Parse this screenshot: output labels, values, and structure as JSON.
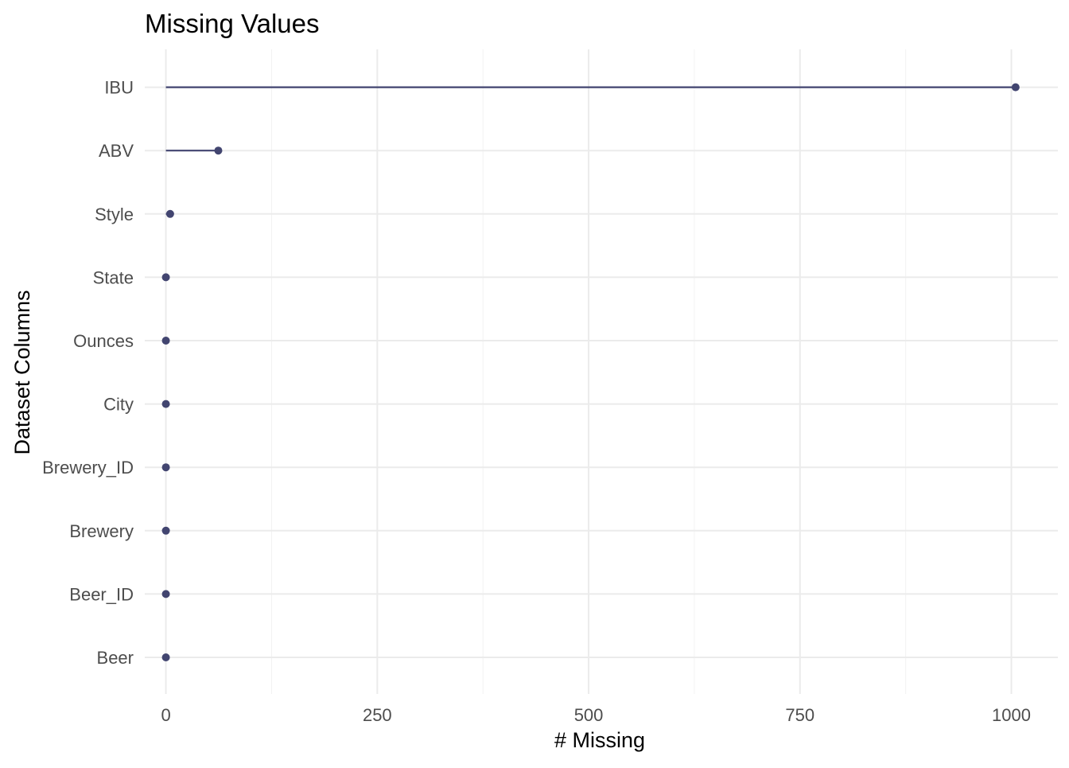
{
  "chart_data": {
    "type": "lollipop",
    "title": "Missing Values",
    "xlabel": "# Missing",
    "ylabel": "Dataset Columns",
    "categories": [
      "Beer",
      "Beer_ID",
      "Brewery",
      "Brewery_ID",
      "City",
      "Ounces",
      "State",
      "Style",
      "ABV",
      "IBU"
    ],
    "values": [
      0,
      0,
      0,
      0,
      0,
      0,
      0,
      5,
      62,
      1005
    ],
    "x_ticks": [
      0,
      250,
      500,
      750,
      1000
    ],
    "xlim": [
      -25,
      1055
    ],
    "grid": true,
    "legend": "none",
    "colors": {
      "marker": "#424570",
      "grid_major": "#ebebeb",
      "grid_minor": "#f2f2f2",
      "tick_text": "#4d4d4d"
    }
  }
}
